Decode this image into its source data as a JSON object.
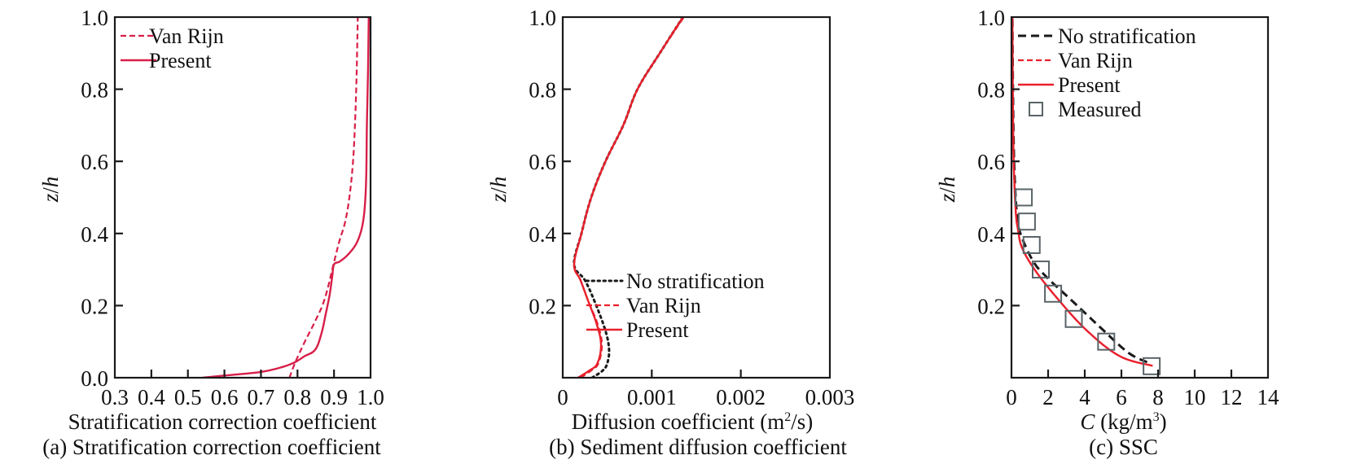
{
  "colors": {
    "red_a": "#d81e48",
    "red": "#e8202c",
    "black": "#1a1a1a",
    "marker": "#5a6468"
  },
  "chart_data": [
    {
      "type": "line",
      "caption": "(a) Stratification correction coefficient",
      "xlabel": "Stratification correction coefficient",
      "ylabel_italic": "z",
      "ylabel_rest": "/",
      "ylabel_italic2": "h",
      "xlim": [
        0.3,
        1.0
      ],
      "ylim": [
        0.0,
        1.0
      ],
      "xticks": [
        "0.3",
        "0.4",
        "0.5",
        "0.6",
        "0.7",
        "0.8",
        "0.9",
        "1.0"
      ],
      "xtick_values": [
        0.3,
        0.4,
        0.5,
        0.6,
        0.7,
        0.8,
        0.9,
        1.0
      ],
      "yticks": [
        "0.0",
        "0.2",
        "0.4",
        "0.6",
        "0.8",
        "1.0"
      ],
      "ytick_values": [
        0.0,
        0.2,
        0.4,
        0.6,
        0.8,
        1.0
      ],
      "legend_position": "top-left",
      "series": [
        {
          "name": "Van Rijn",
          "style": "dashed",
          "x": [
            0.778,
            0.793,
            0.82,
            0.85,
            0.875,
            0.9,
            0.915,
            0.93,
            0.942,
            0.952,
            0.958,
            0.962,
            0.965
          ],
          "y": [
            0.0,
            0.04,
            0.1,
            0.16,
            0.22,
            0.32,
            0.38,
            0.43,
            0.5,
            0.6,
            0.72,
            0.85,
            1.0
          ]
        },
        {
          "name": "Present",
          "style": "solid",
          "x": [
            0.54,
            0.6,
            0.7,
            0.76,
            0.793,
            0.82,
            0.848,
            0.865,
            0.877,
            0.888,
            0.895,
            0.9,
            0.915,
            0.937,
            0.96,
            0.975,
            0.983,
            0.988,
            0.99,
            0.993,
            0.995
          ],
          "y": [
            0.0,
            0.006,
            0.016,
            0.03,
            0.043,
            0.06,
            0.077,
            0.12,
            0.175,
            0.23,
            0.28,
            0.314,
            0.322,
            0.34,
            0.37,
            0.41,
            0.46,
            0.55,
            0.7,
            0.85,
            1.0
          ]
        }
      ]
    },
    {
      "type": "line",
      "caption": "(b) Sediment diffusion coefficient",
      "xlabel_main": "Diffusion coefficient (m",
      "xlabel_sup": "2",
      "xlabel_end": "/s)",
      "ylabel_italic": "z",
      "ylabel_rest": "/",
      "ylabel_italic2": "h",
      "xlim": [
        0,
        0.003
      ],
      "ylim": [
        0.0,
        1.0
      ],
      "xticks": [
        "0",
        "0.001",
        "0.002",
        "0.003"
      ],
      "xtick_values": [
        0,
        0.001,
        0.002,
        0.003
      ],
      "yticks": [
        "0.2",
        "0.4",
        "0.6",
        "0.8",
        "1.0"
      ],
      "ytick_values": [
        0.2,
        0.4,
        0.6,
        0.8,
        1.0
      ],
      "legend_position": "bottom-right",
      "series": [
        {
          "name": "No stratification",
          "style": "dotted",
          "x": [
            0.00033,
            0.00045,
            0.0005,
            0.00052,
            0.00048,
            0.00036,
            0.00025,
            0.000128,
            0.00021,
            0.00032,
            0.00048,
            0.00068,
            0.00084,
            0.00109,
            0.00135
          ],
          "y": [
            0.0,
            0.02,
            0.04,
            0.077,
            0.13,
            0.21,
            0.27,
            0.314,
            0.4,
            0.5,
            0.6,
            0.7,
            0.8,
            0.9,
            1.0
          ]
        },
        {
          "name": "Van Rijn",
          "style": "dashed",
          "x": [
            0.0002,
            0.00032,
            0.0004,
            0.00044,
            0.00039,
            0.00029,
            0.0002,
            0.000128,
            0.00021,
            0.00032,
            0.00048,
            0.00068,
            0.00084,
            0.00109,
            0.00136
          ],
          "y": [
            0.0,
            0.02,
            0.04,
            0.093,
            0.15,
            0.21,
            0.27,
            0.314,
            0.4,
            0.5,
            0.6,
            0.7,
            0.8,
            0.9,
            1.0
          ]
        },
        {
          "name": "Present",
          "style": "solid",
          "x": [
            0.00017,
            0.0003,
            0.00039,
            0.00043,
            0.00038,
            0.00029,
            0.0002,
            0.000128,
            0.00021,
            0.00032,
            0.00048,
            0.00068,
            0.00084,
            0.00109,
            0.00135
          ],
          "y": [
            0.0,
            0.02,
            0.04,
            0.093,
            0.15,
            0.21,
            0.27,
            0.314,
            0.4,
            0.5,
            0.6,
            0.7,
            0.8,
            0.9,
            1.0
          ]
        }
      ]
    },
    {
      "type": "line",
      "caption": "(c) SSC",
      "xlabel_italic": "C",
      "xlabel_main": " (kg/m",
      "xlabel_sup": "3",
      "xlabel_end": ")",
      "ylabel_italic": "z",
      "ylabel_rest": "/",
      "ylabel_italic2": "h",
      "xlim": [
        0,
        14
      ],
      "ylim": [
        0.0,
        1.0
      ],
      "xticks": [
        "0",
        "2",
        "4",
        "6",
        "8",
        "10",
        "12",
        "14"
      ],
      "xtick_values": [
        0,
        2,
        4,
        6,
        8,
        10,
        12,
        14
      ],
      "yticks": [
        "0.2",
        "0.4",
        "0.6",
        "0.8",
        "1.0"
      ],
      "ytick_values": [
        0.2,
        0.4,
        0.6,
        0.8,
        1.0
      ],
      "legend_position": "top-left",
      "series": [
        {
          "name": "No stratification",
          "style": "dashed-black",
          "x": [
            7.4,
            6.36,
            4.9,
            3.38,
            1.9,
            1.16,
            0.49,
            0.3,
            0.18,
            0.12,
            0.08,
            0.05
          ],
          "y": [
            0.043,
            0.07,
            0.137,
            0.21,
            0.28,
            0.325,
            0.4,
            0.45,
            0.55,
            0.65,
            0.8,
            1.0
          ]
        },
        {
          "name": "Van Rijn",
          "style": "dashed",
          "x": [
            7.7,
            5.9,
            4.13,
            2.67,
            1.33,
            0.58,
            0.36,
            0.25,
            0.15,
            0.1,
            0.07,
            0.05
          ],
          "y": [
            0.033,
            0.06,
            0.13,
            0.21,
            0.295,
            0.36,
            0.41,
            0.45,
            0.55,
            0.65,
            0.8,
            1.0
          ]
        },
        {
          "name": "Present",
          "style": "solid",
          "x": [
            7.7,
            5.9,
            4.13,
            2.67,
            1.33,
            0.58,
            0.36,
            0.25,
            0.15,
            0.1,
            0.07,
            0.05
          ],
          "y": [
            0.033,
            0.06,
            0.13,
            0.21,
            0.295,
            0.36,
            0.41,
            0.45,
            0.55,
            0.65,
            0.8,
            1.0
          ]
        },
        {
          "name": "Measured",
          "style": "square-marker",
          "x": [
            0.67,
            0.84,
            1.1,
            1.6,
            2.27,
            3.4,
            5.17,
            7.65
          ],
          "y": [
            0.5,
            0.433,
            0.368,
            0.3,
            0.233,
            0.163,
            0.1,
            0.032
          ]
        }
      ]
    }
  ]
}
